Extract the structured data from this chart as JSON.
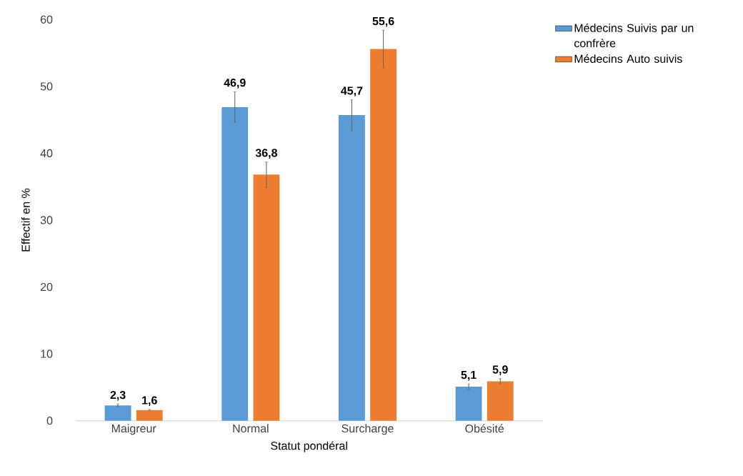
{
  "chart_data": {
    "type": "bar",
    "xlabel": "Statut pondéral",
    "ylabel": "Effectif en %",
    "categories": [
      "Maigreur",
      "Normal",
      "Surcharge",
      "Obésité"
    ],
    "series": [
      {
        "name": "Médecins  Suivis par un confrère",
        "color": "#5b9bd5",
        "values": [
          2.3,
          46.9,
          45.7,
          5.1
        ],
        "errors": [
          0.2,
          2.3,
          2.3,
          0.4
        ],
        "value_labels": [
          "2,3",
          "46,9",
          "45,7",
          "5,1"
        ]
      },
      {
        "name": "Médecins  Auto suivis",
        "color": "#ed7d31",
        "values": [
          1.6,
          36.8,
          55.6,
          5.9
        ],
        "errors": [
          0.1,
          1.9,
          2.8,
          0.4
        ],
        "value_labels": [
          "1,6",
          "36,8",
          "55,6",
          "5,9"
        ]
      }
    ],
    "ylim": [
      0,
      60
    ],
    "yticks": [
      0,
      10,
      20,
      30,
      40,
      50,
      60
    ],
    "grid": false,
    "legend": "top right"
  }
}
